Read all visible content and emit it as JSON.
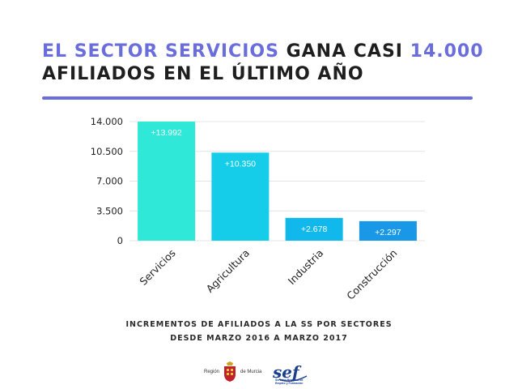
{
  "header": {
    "title_part1": "EL SECTOR SERVICIOS",
    "title_part2": " GANA CASI ",
    "title_part3": "14.000",
    "title_line2": "AFILIADOS EN EL ÚLTIMO AÑO",
    "accent_color": "#6a6ddc"
  },
  "chart_data": {
    "type": "bar",
    "categories": [
      "Servicios",
      "Agricultura",
      "Industria",
      "Construcción"
    ],
    "values": [
      13992,
      10350,
      2678,
      2297
    ],
    "data_labels": [
      "+13.992",
      "+10.350",
      "+2.678",
      "+2.297"
    ],
    "bar_colors": [
      "#2fe8d8",
      "#15cde8",
      "#10b8ec",
      "#1898e6"
    ],
    "yticks": [
      0,
      3500,
      7000,
      10500,
      14000
    ],
    "ytick_labels": [
      "0",
      "3.500",
      "7.000",
      "10.500",
      "14.000"
    ],
    "ylim": [
      0,
      14000
    ],
    "grid": true,
    "title": "",
    "xlabel": "",
    "ylabel": ""
  },
  "caption": {
    "line1": "INCREMENTOS DE AFILIADOS A LA SS POR SECTORES",
    "line2": "DESDE MARZO 2016 A MARZO 2017"
  },
  "logos": {
    "murcia_left": "Región",
    "murcia_right": "de Murcia",
    "sef_mark": "sef",
    "sef_line1": "Servicio Regional de",
    "sef_line2": "Empleo y Formación"
  }
}
